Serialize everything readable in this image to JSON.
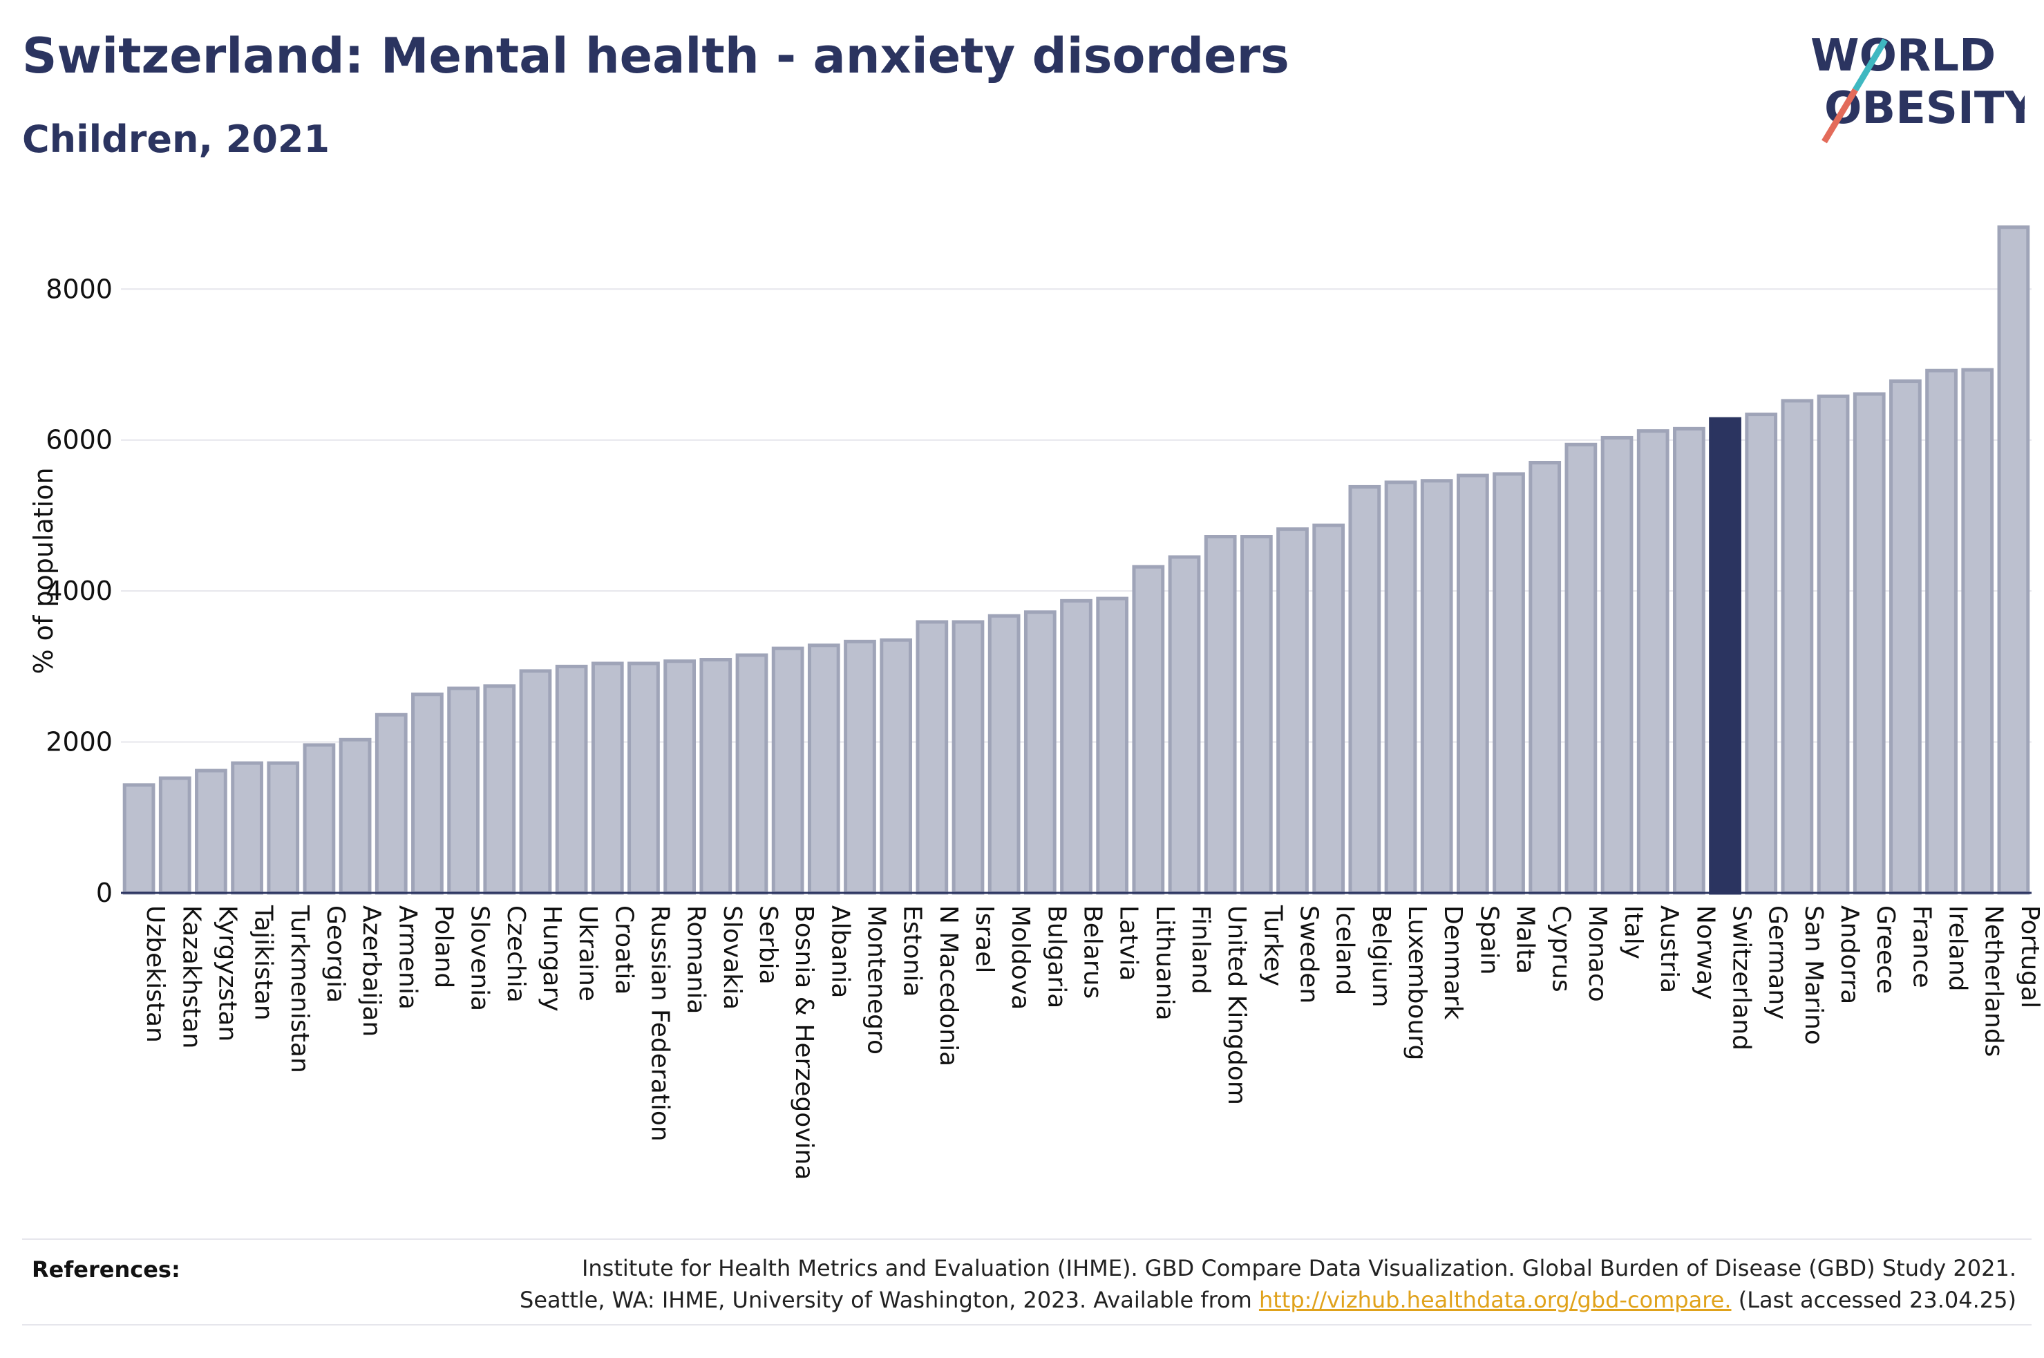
{
  "header": {
    "title": "Switzerland: Mental health - anxiety disorders",
    "subtitle": "Children, 2021"
  },
  "logo": {
    "line1": "WORLD",
    "line2": "OBESITY"
  },
  "colors": {
    "bar_fill": "#bcc0cf",
    "bar_stroke": "#9fa4b8",
    "highlight": "#2b3460",
    "accent_red": "#e36b5a",
    "accent_teal": "#3fb8c1",
    "link": "#e0a21b"
  },
  "chart_data": {
    "type": "bar",
    "ylabel": "% of population",
    "ylim": [
      0,
      8900
    ],
    "yticks": [
      0,
      2000,
      4000,
      6000,
      8000
    ],
    "grid": true,
    "highlight": "Switzerland",
    "categories": [
      "Uzbekistan",
      "Kazakhstan",
      "Kyrgyzstan",
      "Tajikistan",
      "Turkmenistan",
      "Georgia",
      "Azerbaijan",
      "Armenia",
      "Poland",
      "Slovenia",
      "Czechia",
      "Hungary",
      "Ukraine",
      "Croatia",
      "Russian Federation",
      "Romania",
      "Slovakia",
      "Serbia",
      "Bosnia & Herzegovina",
      "Albania",
      "Montenegro",
      "Estonia",
      "N Macedonia",
      "Israel",
      "Moldova",
      "Bulgaria",
      "Belarus",
      "Latvia",
      "Lithuania",
      "Finland",
      "United Kingdom",
      "Turkey",
      "Sweden",
      "Iceland",
      "Belgium",
      "Luxembourg",
      "Denmark",
      "Spain",
      "Malta",
      "Cyprus",
      "Monaco",
      "Italy",
      "Austria",
      "Norway",
      "Switzerland",
      "Germany",
      "San Marino",
      "Andorra",
      "Greece",
      "France",
      "Ireland",
      "Netherlands",
      "Portugal"
    ],
    "values": [
      1430,
      1520,
      1620,
      1720,
      1720,
      1960,
      2030,
      2360,
      2630,
      2710,
      2740,
      2940,
      3000,
      3040,
      3040,
      3070,
      3090,
      3150,
      3240,
      3280,
      3330,
      3350,
      3590,
      3590,
      3670,
      3720,
      3870,
      3900,
      4320,
      4450,
      4720,
      4720,
      4820,
      4870,
      5380,
      5440,
      5460,
      5530,
      5550,
      5700,
      5940,
      6030,
      6120,
      6150,
      6280,
      6340,
      6520,
      6580,
      6610,
      6780,
      6920,
      6930,
      8820
    ]
  },
  "references": {
    "label": "References:",
    "line1": "Institute for Health Metrics and Evaluation (IHME). GBD Compare Data Visualization. Global Burden of Disease (GBD) Study 2021.",
    "line2_prefix": "Seattle, WA: IHME, University of Washington, 2023. Available from ",
    "link": "http://vizhub.healthdata.org/gbd-compare.",
    "line2_suffix": " (Last accessed 23.04.25)"
  }
}
